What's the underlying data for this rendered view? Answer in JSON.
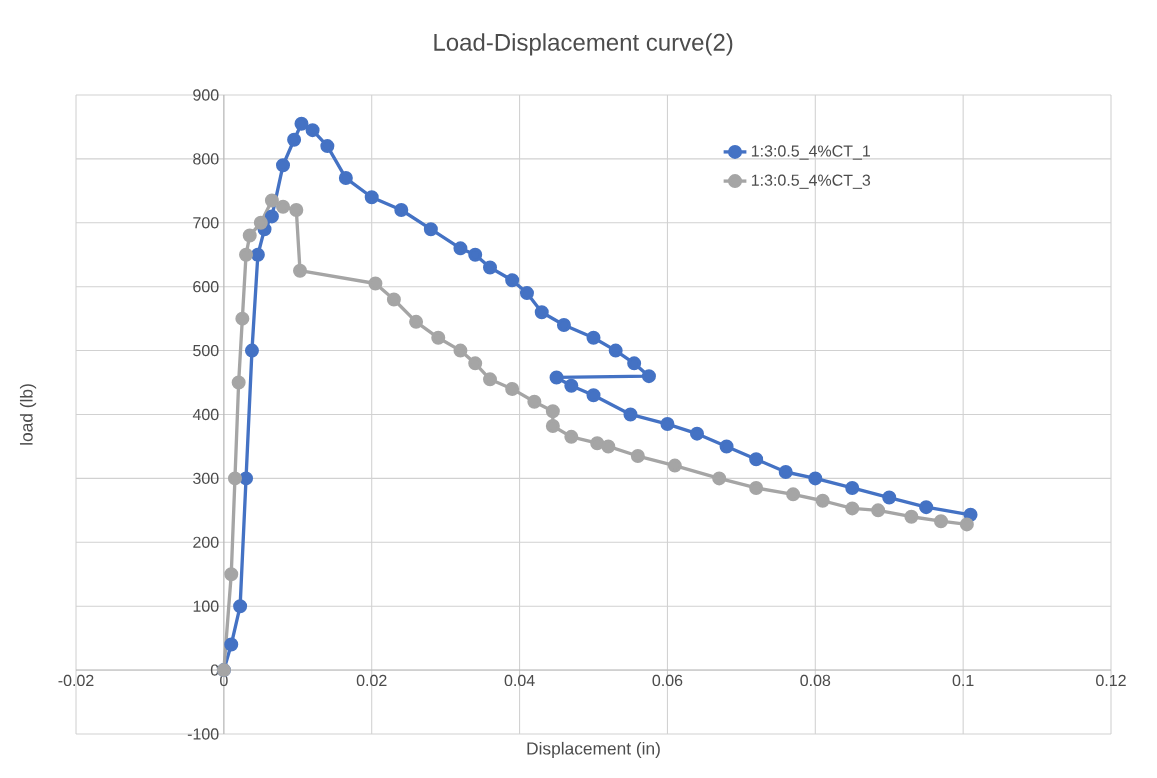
{
  "chart_data": {
    "type": "line",
    "title": "Load-Displacement curve(2)",
    "xlabel": "Displacement (in)",
    "ylabel": "load (lb)",
    "xlim": [
      -0.02,
      0.12
    ],
    "xticks": [
      -0.02,
      0,
      0.02,
      0.04,
      0.06,
      0.08,
      0.1,
      0.12
    ],
    "ylim": [
      -100,
      900
    ],
    "yticks": [
      -100,
      0,
      100,
      200,
      300,
      400,
      500,
      600,
      700,
      800,
      900
    ],
    "grid": true,
    "legend": "top right",
    "marker": "circle",
    "line_style": "solid",
    "series": [
      {
        "name": "1:3:0.5_4%CT_1",
        "color": "#4472c4",
        "x": [
          0,
          0.001,
          0.0022,
          0.003,
          0.0038,
          0.0046,
          0.0055,
          0.0065,
          0.008,
          0.0095,
          0.0105,
          0.012,
          0.014,
          0.0165,
          0.02,
          0.024,
          0.028,
          0.032,
          0.034,
          0.036,
          0.039,
          0.041,
          0.043,
          0.046,
          0.05,
          0.053,
          0.0555,
          0.0575,
          0.045,
          0.047,
          0.05,
          0.055,
          0.06,
          0.064,
          0.068,
          0.072,
          0.076,
          0.08,
          0.085,
          0.09,
          0.095,
          0.101
        ],
        "values": [
          0,
          40,
          100,
          300,
          500,
          650,
          690,
          710,
          790,
          830,
          855,
          845,
          820,
          770,
          740,
          720,
          690,
          660,
          650,
          630,
          610,
          590,
          560,
          540,
          520,
          500,
          480,
          460,
          458,
          445,
          430,
          400,
          385,
          370,
          350,
          330,
          310,
          300,
          285,
          270,
          255,
          243
        ]
      },
      {
        "name": "1:3:0.5_4%CT_3",
        "color": "#a5a5a5",
        "x": [
          0,
          0.001,
          0.0015,
          0.002,
          0.0025,
          0.003,
          0.0035,
          0.005,
          0.0065,
          0.008,
          0.0098,
          0.0103,
          0.0205,
          0.023,
          0.026,
          0.029,
          0.032,
          0.034,
          0.036,
          0.039,
          0.042,
          0.0445,
          0.0445,
          0.047,
          0.0505,
          0.052,
          0.056,
          0.061,
          0.067,
          0.072,
          0.077,
          0.081,
          0.085,
          0.0885,
          0.093,
          0.097,
          0.1005
        ],
        "values": [
          0,
          150,
          300,
          450,
          550,
          650,
          680,
          700,
          735,
          725,
          720,
          625,
          605,
          580,
          545,
          520,
          500,
          480,
          455,
          440,
          420,
          405,
          382,
          365,
          355,
          350,
          335,
          320,
          300,
          285,
          275,
          265,
          253,
          250,
          240,
          233,
          228
        ]
      }
    ]
  }
}
